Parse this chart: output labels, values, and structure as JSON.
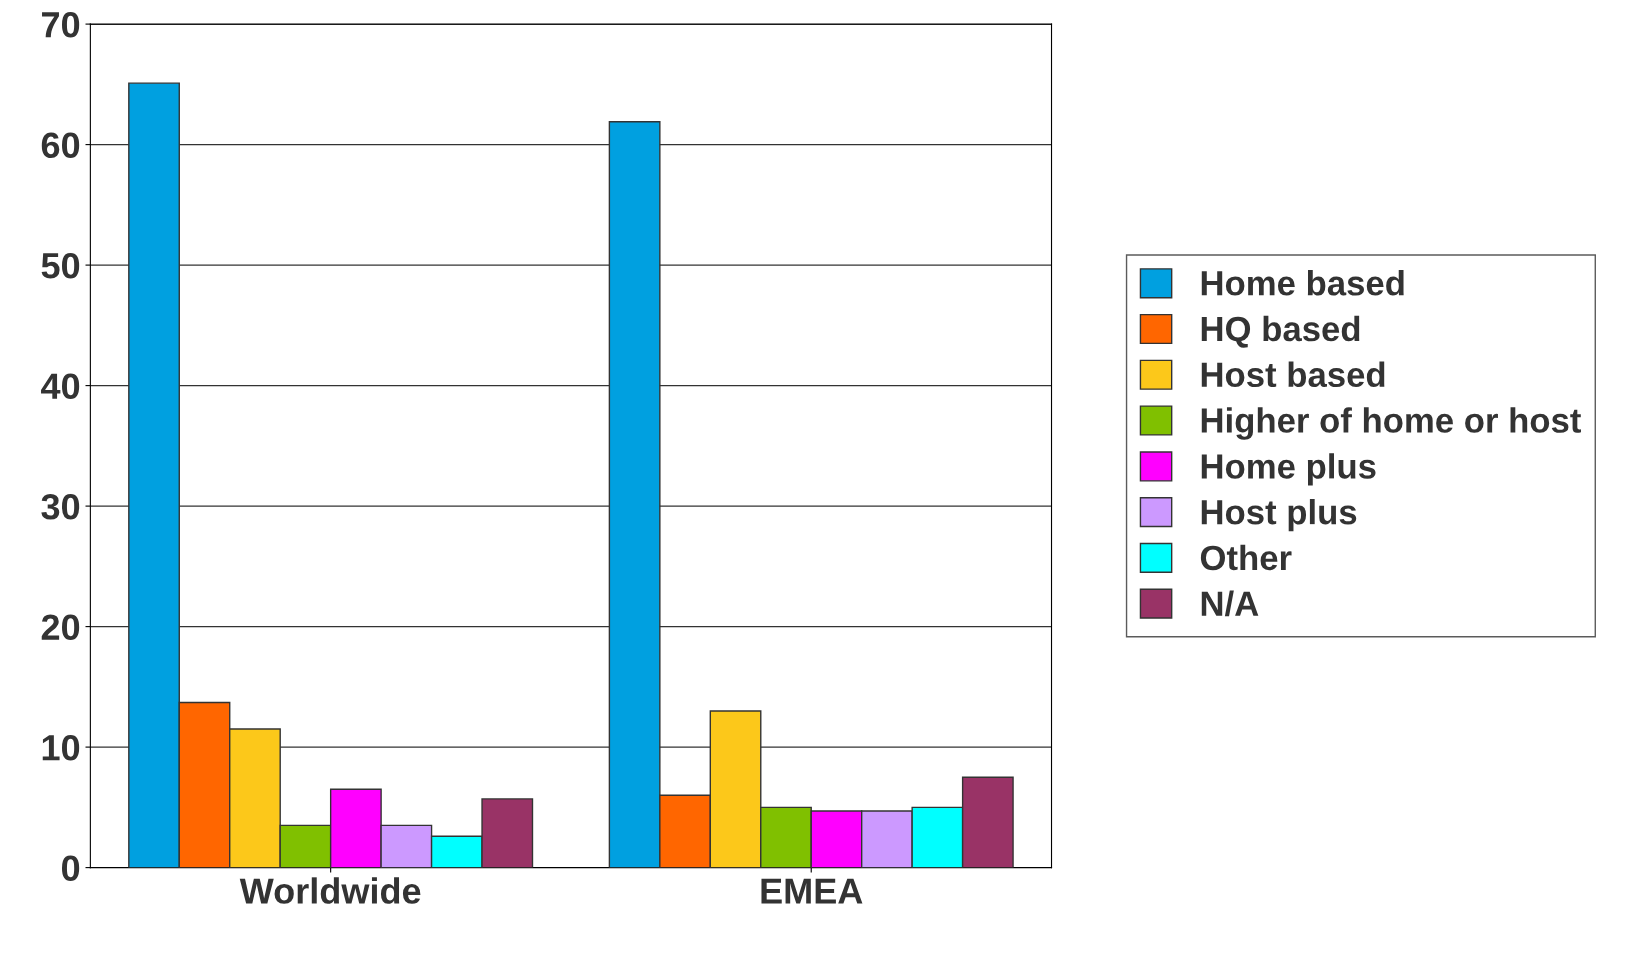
{
  "chart_data": {
    "type": "bar",
    "categories": [
      "Worldwide",
      "EMEA"
    ],
    "series": [
      {
        "name": "Home based",
        "color": "#00a0e0",
        "values": [
          65.1,
          61.9
        ]
      },
      {
        "name": "HQ based",
        "color": "#ff6600",
        "values": [
          13.7,
          6.0
        ]
      },
      {
        "name": "Host based",
        "color": "#fcc81a",
        "values": [
          11.5,
          13.0
        ]
      },
      {
        "name": "Higher of home or host",
        "color": "#80c000",
        "values": [
          3.5,
          5.0
        ]
      },
      {
        "name": "Home plus",
        "color": "#ff00ff",
        "values": [
          6.5,
          4.7
        ]
      },
      {
        "name": "Host plus",
        "color": "#cc99ff",
        "values": [
          3.5,
          4.7
        ]
      },
      {
        "name": "Other",
        "color": "#00ffff",
        "values": [
          2.6,
          5.0
        ]
      },
      {
        "name": "N/A",
        "color": "#993366",
        "values": [
          5.7,
          7.5
        ]
      }
    ],
    "ylim": [
      0,
      70
    ],
    "yticks": [
      0,
      10,
      20,
      30,
      40,
      50,
      60,
      70
    ],
    "grid": "y",
    "legend": "right"
  }
}
